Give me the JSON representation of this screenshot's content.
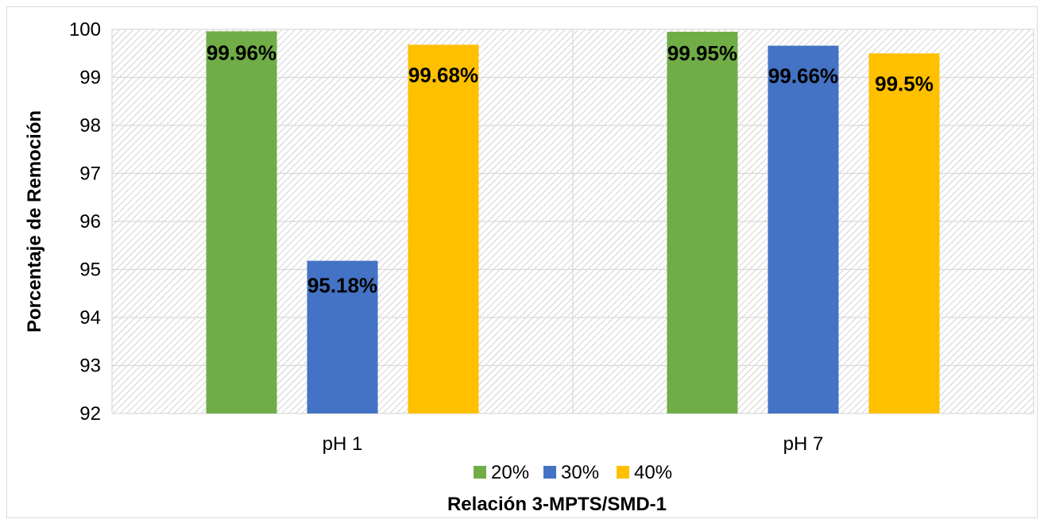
{
  "chart_data": {
    "type": "bar",
    "categories": [
      "pH 1",
      "pH 7"
    ],
    "series": [
      {
        "name": "20%",
        "color": "#70ad47",
        "values": [
          99.96,
          99.95
        ],
        "labels": [
          "99.96%",
          "99.95%"
        ]
      },
      {
        "name": "30%",
        "color": "#4472c4",
        "values": [
          95.18,
          99.66
        ],
        "labels": [
          "95.18%",
          "99.66%"
        ]
      },
      {
        "name": "40%",
        "color": "#ffc000",
        "values": [
          99.68,
          99.5
        ],
        "labels": [
          "99.68%",
          "99.5%"
        ]
      }
    ],
    "title": "",
    "xlabel": "Relación 3-MPTS/SMD-1",
    "ylabel": "Porcentaje de Remoción",
    "ylim": [
      92,
      100
    ],
    "yticks": [
      "92",
      "93",
      "94",
      "95",
      "96",
      "97",
      "98",
      "99",
      "100"
    ],
    "grid": true,
    "legend_position": "bottom",
    "plot_background": "hatched"
  }
}
